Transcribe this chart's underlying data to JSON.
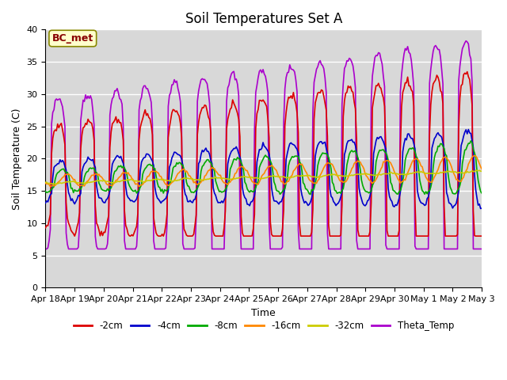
{
  "title": "Soil Temperatures Set A",
  "xlabel": "Time",
  "ylabel": "Soil Temperature (C)",
  "ylim": [
    0,
    40
  ],
  "yticks": [
    0,
    5,
    10,
    15,
    20,
    25,
    30,
    35,
    40
  ],
  "date_labels": [
    "Apr 18",
    "Apr 19",
    "Apr 20",
    "Apr 21",
    "Apr 22",
    "Apr 23",
    "Apr 24",
    "Apr 25",
    "Apr 26",
    "Apr 27",
    "Apr 28",
    "Apr 29",
    "Apr 30",
    "May 1",
    "May 2",
    "May 3"
  ],
  "series": {
    "-2cm": {
      "color": "#dd0000",
      "lw": 1.2
    },
    "-4cm": {
      "color": "#0000cc",
      "lw": 1.2
    },
    "-8cm": {
      "color": "#00aa00",
      "lw": 1.2
    },
    "-16cm": {
      "color": "#ff8800",
      "lw": 1.2
    },
    "-32cm": {
      "color": "#cccc00",
      "lw": 1.2
    },
    "Theta_Temp": {
      "color": "#aa00cc",
      "lw": 1.2
    }
  },
  "annotation_text": "BC_met",
  "annotation_color": "#880000",
  "annotation_bg": "#ffffcc",
  "background_color": "#d8d8d8",
  "grid_color": "#ffffff",
  "title_fontsize": 12,
  "label_fontsize": 9,
  "tick_fontsize": 8
}
